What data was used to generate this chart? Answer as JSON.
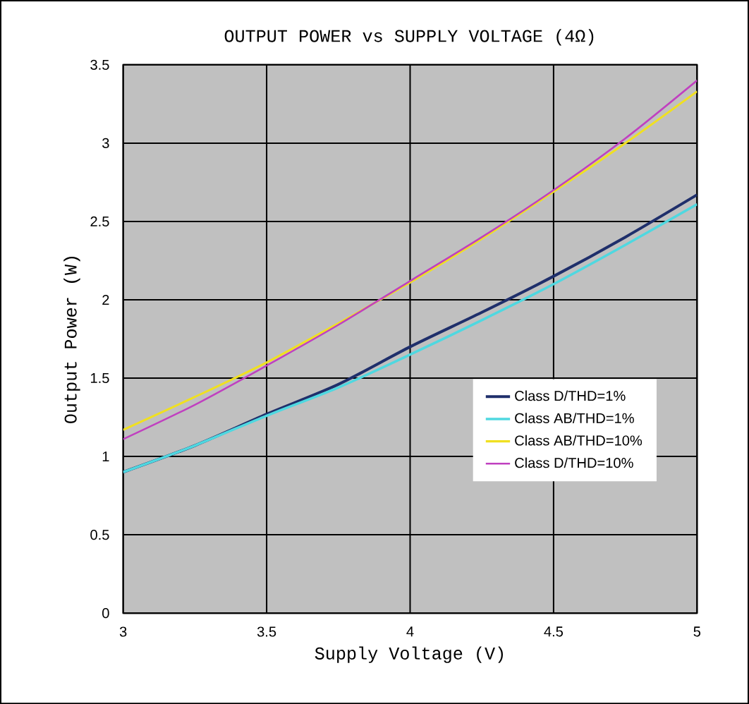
{
  "chart_data": {
    "type": "line",
    "title": "OUTPUT POWER vs SUPPLY VOLTAGE (4Ω)",
    "xlabel": "Supply Voltage (V)",
    "ylabel": "Output Power (W)",
    "xlim": [
      3,
      5
    ],
    "xticks": [
      3,
      3.5,
      4,
      4.5,
      5
    ],
    "ylim": [
      0,
      3.5
    ],
    "yticks": [
      0,
      0.5,
      1,
      1.5,
      2,
      2.5,
      3,
      3.5
    ],
    "grid": true,
    "legend": "bottom right",
    "marker": "none",
    "line_style": "solid",
    "x": [
      3,
      3.25,
      3.5,
      3.75,
      4,
      4.25,
      4.5,
      4.75,
      5
    ],
    "series": [
      {
        "name": "Class D/THD=1%",
        "color": "#1f2f6b",
        "values": [
          0.9,
          1.07,
          1.27,
          1.46,
          1.7,
          1.92,
          2.15,
          2.4,
          2.67
        ]
      },
      {
        "name": "Class AB/THD=1%",
        "color": "#4fd8e0",
        "values": [
          0.9,
          1.07,
          1.26,
          1.44,
          1.65,
          1.87,
          2.1,
          2.35,
          2.61
        ]
      },
      {
        "name": "Class AB/THD=10%",
        "color": "#f0e020",
        "values": [
          1.17,
          1.38,
          1.6,
          1.85,
          2.11,
          2.39,
          2.69,
          3.0,
          3.33
        ]
      },
      {
        "name": "Class D/THD=10%",
        "color": "#c040c0",
        "values": [
          1.11,
          1.33,
          1.58,
          1.84,
          2.12,
          2.4,
          2.7,
          3.03,
          3.4
        ]
      }
    ]
  }
}
